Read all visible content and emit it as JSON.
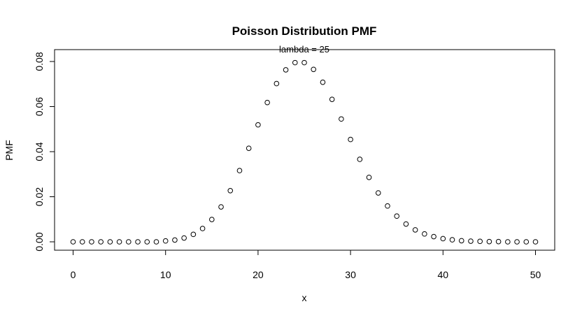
{
  "chart_data": {
    "type": "scatter",
    "title": "Poisson Distribution PMF",
    "subtitle": "lambda = 25",
    "xlabel": "x",
    "ylabel": "PMF",
    "xlim": [
      0,
      50
    ],
    "ylim": [
      0,
      0.08
    ],
    "x_ticks": [
      0,
      10,
      20,
      30,
      40,
      50
    ],
    "y_ticks": [
      0.0,
      0.02,
      0.04,
      0.06,
      0.08
    ],
    "x_tick_labels": [
      "0",
      "10",
      "20",
      "30",
      "40",
      "50"
    ],
    "y_tick_labels": [
      "0.00",
      "0.02",
      "0.04",
      "0.06",
      "0.08"
    ],
    "grid": false,
    "marker": "open-circle",
    "color": "#000000",
    "series": [
      {
        "x": [
          0,
          1,
          2,
          3,
          4,
          5,
          6,
          7,
          8,
          9,
          10,
          11,
          12,
          13,
          14,
          15,
          16,
          17,
          18,
          19,
          20,
          21,
          22,
          23,
          24,
          25,
          26,
          27,
          28,
          29,
          30,
          31,
          32,
          33,
          34,
          35,
          36,
          37,
          38,
          39,
          40,
          41,
          42,
          43,
          44,
          45,
          46,
          47,
          48,
          49,
          50
        ],
        "values": [
          0.0,
          0.0,
          0.0,
          0.0,
          0.0,
          0.0,
          0.0,
          0.0,
          0.0,
          0.0,
          0.0004,
          0.0008,
          0.0017,
          0.0033,
          0.0059,
          0.0099,
          0.0155,
          0.0227,
          0.0316,
          0.0415,
          0.0519,
          0.0618,
          0.0702,
          0.0763,
          0.0795,
          0.0795,
          0.0765,
          0.0708,
          0.0632,
          0.0545,
          0.0454,
          0.0366,
          0.0286,
          0.0217,
          0.0159,
          0.0114,
          0.0079,
          0.0053,
          0.0035,
          0.0023,
          0.0014,
          0.0009,
          0.0005,
          0.0003,
          0.0002,
          0.0001,
          0.0001,
          0.0,
          0.0,
          0.0,
          0.0
        ]
      }
    ]
  }
}
